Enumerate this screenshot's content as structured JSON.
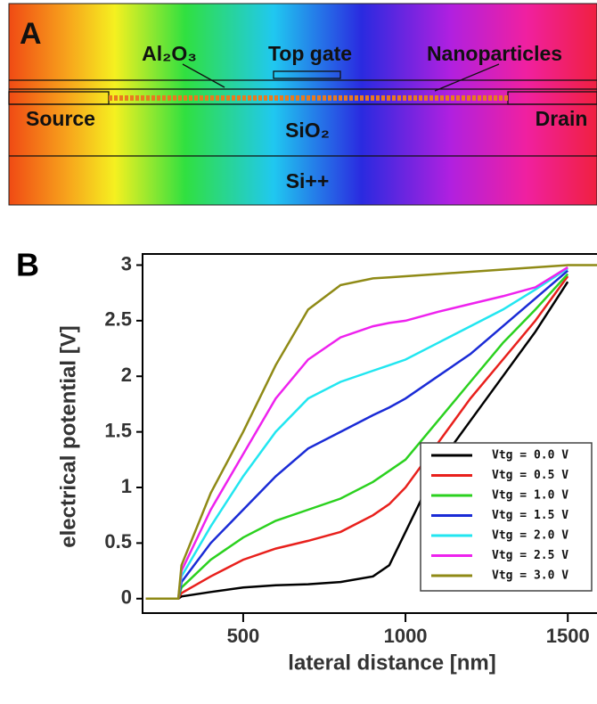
{
  "panel_a": {
    "label": "A",
    "layers": {
      "al2o3": "Al₂O₃",
      "top_gate": "Top gate",
      "nanoparticles": "Nanoparticles",
      "source": "Source",
      "drain": "Drain",
      "sio2": "SiO₂",
      "si": "Si++"
    }
  },
  "chart_data": {
    "type": "line",
    "panel_label": "B",
    "x_label": "lateral distance [nm]",
    "y_label": "electrical potential [V]",
    "x": [
      200,
      300,
      310,
      400,
      500,
      600,
      700,
      800,
      900,
      950,
      1000,
      1100,
      1200,
      1300,
      1400,
      1500,
      1600
    ],
    "series": [
      {
        "name": "Vtg = 0.0 V",
        "color": "#000000",
        "values": [
          0,
          0,
          0.02,
          0.06,
          0.1,
          0.12,
          0.13,
          0.15,
          0.2,
          0.3,
          0.6,
          1.2,
          1.6,
          2.0,
          2.4,
          2.85,
          null
        ]
      },
      {
        "name": "Vtg = 0.5 V",
        "color": "#e8201c",
        "values": [
          0,
          0,
          0.05,
          0.2,
          0.35,
          0.45,
          0.52,
          0.6,
          0.75,
          0.85,
          1.0,
          1.4,
          1.8,
          2.15,
          2.5,
          2.9,
          null
        ]
      },
      {
        "name": "Vtg = 1.0 V",
        "color": "#2bd11f",
        "values": [
          0,
          0,
          0.1,
          0.35,
          0.55,
          0.7,
          0.8,
          0.9,
          1.05,
          1.15,
          1.25,
          1.6,
          1.95,
          2.3,
          2.6,
          2.92,
          null
        ]
      },
      {
        "name": "Vtg = 1.5 V",
        "color": "#1a2bd6",
        "values": [
          0,
          0,
          0.15,
          0.5,
          0.8,
          1.1,
          1.35,
          1.5,
          1.65,
          1.72,
          1.8,
          2.0,
          2.2,
          2.45,
          2.7,
          2.95,
          null
        ]
      },
      {
        "name": "Vtg = 2.0 V",
        "color": "#22e6f0",
        "values": [
          0,
          0,
          0.2,
          0.65,
          1.1,
          1.5,
          1.8,
          1.95,
          2.05,
          2.1,
          2.15,
          2.3,
          2.45,
          2.6,
          2.78,
          2.97,
          null
        ]
      },
      {
        "name": "Vtg = 2.5 V",
        "color": "#ee22ee",
        "values": [
          0,
          0,
          0.25,
          0.8,
          1.3,
          1.8,
          2.15,
          2.35,
          2.45,
          2.48,
          2.5,
          2.58,
          2.65,
          2.72,
          2.8,
          2.98,
          null
        ]
      },
      {
        "name": "Vtg = 3.0 V",
        "color": "#8f8a16",
        "values": [
          0,
          0,
          0.3,
          0.95,
          1.5,
          2.1,
          2.6,
          2.82,
          2.88,
          2.89,
          2.9,
          2.92,
          2.94,
          2.96,
          2.98,
          3.0,
          3.0
        ]
      }
    ],
    "xlim": [
      190,
      1590
    ],
    "ylim": [
      -0.13,
      3.1
    ],
    "xticks": [
      500,
      1000,
      1500
    ],
    "yticks": [
      0,
      0.5,
      1,
      1.5,
      2,
      2.5,
      3
    ],
    "legend": "lower right"
  }
}
